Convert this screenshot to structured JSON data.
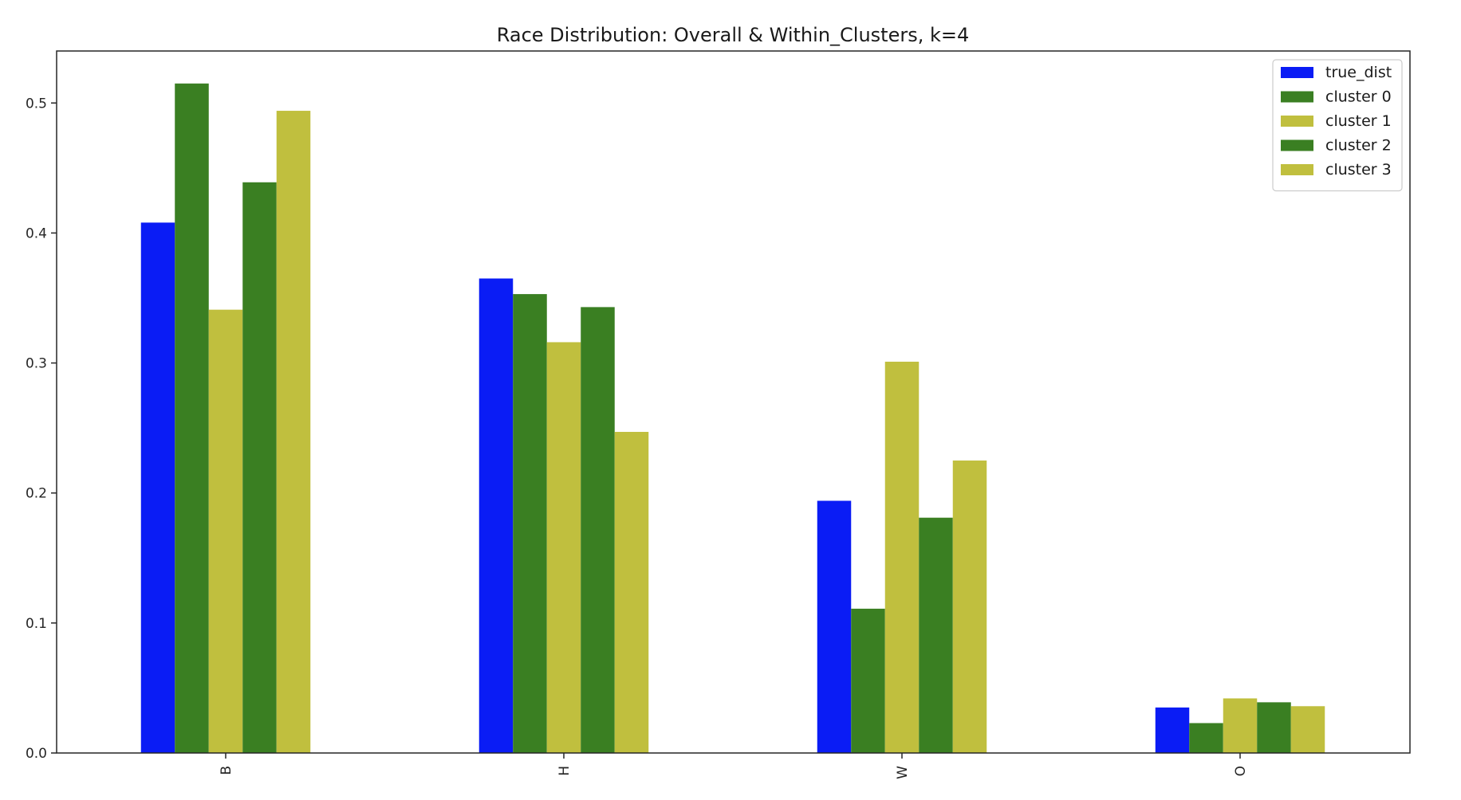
{
  "chart_data": {
    "type": "bar",
    "title": "Race Distribution: Overall & Within_Clusters, k=4",
    "xlabel": "",
    "ylabel": "",
    "categories": [
      "B",
      "H",
      "W",
      "O"
    ],
    "ylim": [
      0,
      0.54
    ],
    "yticks": [
      0.0,
      0.1,
      0.2,
      0.3,
      0.4,
      0.5
    ],
    "ytick_labels": [
      "0.0",
      "0.1",
      "0.2",
      "0.3",
      "0.4",
      "0.5"
    ],
    "grid": false,
    "legend_position": "top-right",
    "series": [
      {
        "name": "true_dist",
        "color": "#0a1cf5",
        "values": [
          0.408,
          0.365,
          0.194,
          0.035
        ]
      },
      {
        "name": "cluster 0",
        "color": "#3a7f22",
        "values": [
          0.515,
          0.353,
          0.111,
          0.023
        ]
      },
      {
        "name": "cluster 1",
        "color": "#c0bf3e",
        "values": [
          0.341,
          0.316,
          0.301,
          0.042
        ]
      },
      {
        "name": "cluster 2",
        "color": "#3a7f22",
        "values": [
          0.439,
          0.343,
          0.181,
          0.039
        ]
      },
      {
        "name": "cluster 3",
        "color": "#c0bf3e",
        "values": [
          0.494,
          0.247,
          0.225,
          0.036
        ]
      }
    ]
  }
}
